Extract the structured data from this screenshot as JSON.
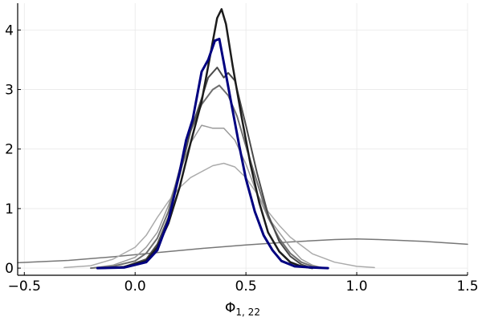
{
  "chart_data": {
    "type": "line",
    "title": "",
    "xlabel": "Φ",
    "xlabel_subscript": "1, 22",
    "ylabel": "",
    "xlim": [
      -0.53,
      1.5
    ],
    "ylim": [
      -0.12,
      4.45
    ],
    "xticks": [
      -0.5,
      0.0,
      0.5,
      1.0,
      1.5
    ],
    "xtick_labels": [
      "−0.5",
      "0.0",
      "0.5",
      "1.0",
      "1.5"
    ],
    "yticks": [
      0,
      1,
      2,
      3,
      4
    ],
    "ytick_labels": [
      "0",
      "1",
      "2",
      "3",
      "4"
    ],
    "grid": true,
    "legend": "none",
    "series": [
      {
        "color": "#777777",
        "width": 1.5,
        "x": [
          -0.53,
          -0.3,
          -0.1,
          0.1,
          0.3,
          0.5,
          0.7,
          0.9,
          1.0,
          1.1,
          1.3,
          1.5
        ],
        "y": [
          0.09,
          0.13,
          0.19,
          0.26,
          0.33,
          0.39,
          0.44,
          0.48,
          0.49,
          0.48,
          0.45,
          0.4
        ]
      },
      {
        "color": "#ababab",
        "width": 1.5,
        "x": [
          -0.32,
          -0.2,
          -0.1,
          0.0,
          0.05,
          0.1,
          0.15,
          0.2,
          0.25,
          0.3,
          0.35,
          0.4,
          0.45,
          0.5,
          0.55,
          0.6,
          0.65,
          0.7,
          0.75,
          0.8,
          0.9,
          1.0,
          1.08
        ],
        "y": [
          0.01,
          0.04,
          0.15,
          0.35,
          0.55,
          0.85,
          1.12,
          1.35,
          1.52,
          1.62,
          1.72,
          1.76,
          1.7,
          1.52,
          1.25,
          0.95,
          0.72,
          0.52,
          0.38,
          0.24,
          0.1,
          0.03,
          0.01
        ]
      },
      {
        "color": "#9a9a9a",
        "width": 1.5,
        "x": [
          -0.2,
          -0.1,
          0.0,
          0.05,
          0.1,
          0.15,
          0.2,
          0.25,
          0.3,
          0.35,
          0.4,
          0.45,
          0.5,
          0.55,
          0.6,
          0.65,
          0.7,
          0.75,
          0.8,
          0.85
        ],
        "y": [
          0.0,
          0.05,
          0.18,
          0.35,
          0.6,
          1.05,
          1.6,
          2.1,
          2.4,
          2.35,
          2.35,
          2.15,
          1.75,
          1.25,
          0.85,
          0.6,
          0.35,
          0.15,
          0.05,
          0.0
        ]
      },
      {
        "color": "#6f6f6f",
        "width": 2,
        "x": [
          -0.2,
          -0.1,
          0.0,
          0.05,
          0.1,
          0.15,
          0.2,
          0.25,
          0.3,
          0.35,
          0.38,
          0.42,
          0.46,
          0.5,
          0.55,
          0.6,
          0.65,
          0.7,
          0.75,
          0.8,
          0.86
        ],
        "y": [
          0.0,
          0.03,
          0.12,
          0.25,
          0.5,
          0.95,
          1.65,
          2.3,
          2.75,
          3.0,
          3.07,
          2.9,
          2.55,
          2.05,
          1.45,
          0.85,
          0.5,
          0.25,
          0.1,
          0.03,
          0.0
        ]
      },
      {
        "color": "#4a4a4a",
        "width": 2,
        "x": [
          -0.15,
          -0.05,
          0.05,
          0.1,
          0.15,
          0.2,
          0.25,
          0.3,
          0.33,
          0.37,
          0.4,
          0.42,
          0.45,
          0.5,
          0.55,
          0.6,
          0.65,
          0.7,
          0.75,
          0.8
        ],
        "y": [
          0.0,
          0.02,
          0.15,
          0.4,
          0.85,
          1.55,
          2.3,
          2.85,
          3.2,
          3.37,
          3.2,
          3.28,
          3.15,
          2.4,
          1.6,
          0.9,
          0.45,
          0.2,
          0.06,
          0.0
        ]
      },
      {
        "color": "#1c1c1c",
        "width": 2.5,
        "x": [
          -0.15,
          -0.05,
          0.05,
          0.1,
          0.15,
          0.2,
          0.25,
          0.3,
          0.34,
          0.37,
          0.39,
          0.41,
          0.44,
          0.48,
          0.52,
          0.56,
          0.6,
          0.65,
          0.7,
          0.75,
          0.8
        ],
        "y": [
          0.0,
          0.02,
          0.12,
          0.35,
          0.75,
          1.35,
          2.1,
          2.8,
          3.6,
          4.2,
          4.35,
          4.1,
          3.4,
          2.55,
          1.75,
          1.1,
          0.6,
          0.28,
          0.1,
          0.03,
          0.0
        ]
      },
      {
        "color": "#000080",
        "width": 3,
        "x": [
          -0.17,
          -0.05,
          0.05,
          0.1,
          0.15,
          0.2,
          0.23,
          0.26,
          0.3,
          0.33,
          0.36,
          0.38,
          0.4,
          0.43,
          0.47,
          0.5,
          0.54,
          0.58,
          0.62,
          0.66,
          0.72,
          0.8,
          0.87
        ],
        "y": [
          0.0,
          0.01,
          0.1,
          0.3,
          0.8,
          1.6,
          2.15,
          2.5,
          3.3,
          3.5,
          3.82,
          3.85,
          3.45,
          2.85,
          2.05,
          1.5,
          0.95,
          0.55,
          0.3,
          0.12,
          0.03,
          0.01,
          0.0
        ]
      }
    ]
  }
}
